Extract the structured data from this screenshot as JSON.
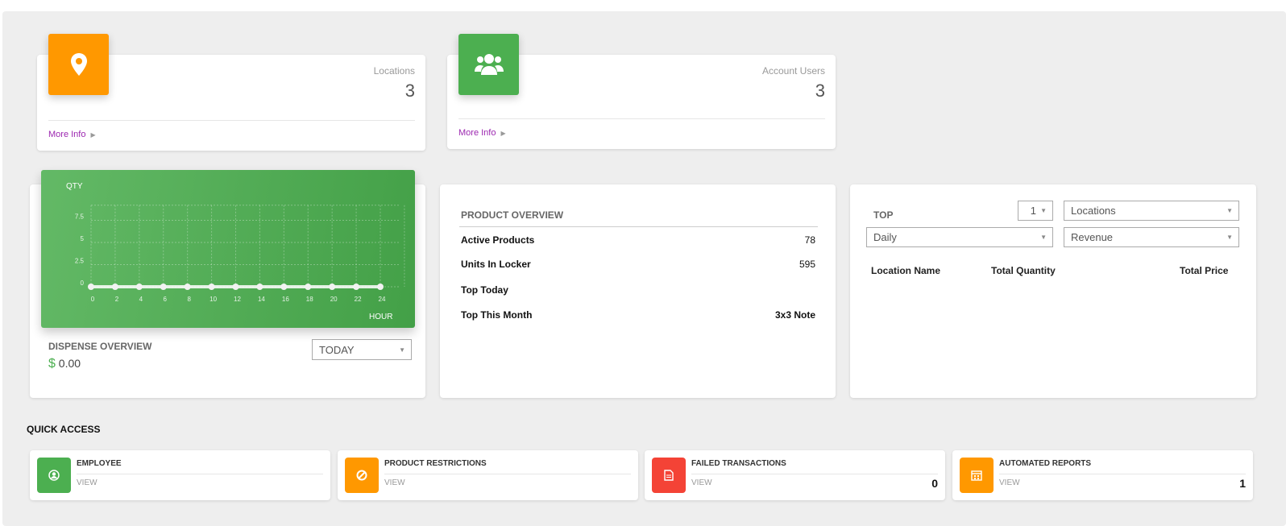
{
  "colors": {
    "orange": "#ff9800",
    "green": "#4caf50",
    "red": "#f44336",
    "link": "#9c27b0"
  },
  "stats": [
    {
      "label": "Locations",
      "value": "3",
      "more": "More Info",
      "icon": "map-pin-icon"
    },
    {
      "label": "Account Users",
      "value": "3",
      "more": "More Info",
      "icon": "users-icon"
    }
  ],
  "dispense": {
    "title": "DISPENSE OVERVIEW",
    "currency": "$",
    "amount": "0.00",
    "period": "TODAY"
  },
  "chart_data": {
    "type": "line",
    "xlabel": "HOUR",
    "ylabel": "QTY",
    "x": [
      0,
      2,
      4,
      6,
      8,
      10,
      12,
      14,
      16,
      18,
      20,
      22,
      24
    ],
    "values": [
      0,
      0,
      0,
      0,
      0,
      0,
      0,
      0,
      0,
      0,
      0,
      0,
      0
    ],
    "xticks": [
      "0",
      "2",
      "4",
      "6",
      "8",
      "10",
      "12",
      "14",
      "16",
      "18",
      "20",
      "22",
      "24"
    ],
    "yticks": [
      "0",
      "2.5",
      "5",
      "7.5"
    ],
    "xlim": [
      0,
      24
    ],
    "ylim": [
      0,
      10
    ],
    "grid": true
  },
  "product": {
    "title": "PRODUCT OVERVIEW",
    "rows": [
      {
        "label": "Active Products",
        "value": "78"
      },
      {
        "label": "Units In Locker",
        "value": "595"
      },
      {
        "label": "Top Today",
        "value": ""
      },
      {
        "label": "Top This Month",
        "value": "3x3 Note"
      }
    ]
  },
  "top": {
    "title": "TOP",
    "count": "1",
    "entity": "Locations",
    "period": "Daily",
    "metric": "Revenue",
    "columns": [
      "Location Name",
      "Total Quantity",
      "Total Price"
    ]
  },
  "quick": {
    "title": "QUICK ACCESS",
    "items": [
      {
        "label": "EMPLOYEE",
        "view": "VIEW",
        "count": "",
        "icon": "user-circle-icon",
        "color": "#4caf50"
      },
      {
        "label": "PRODUCT RESTRICTIONS",
        "view": "VIEW",
        "count": "",
        "icon": "block-icon",
        "color": "#ff9800"
      },
      {
        "label": "FAILED TRANSACTIONS",
        "view": "VIEW",
        "count": "0",
        "icon": "document-icon",
        "color": "#f44336"
      },
      {
        "label": "AUTOMATED REPORTS",
        "view": "VIEW",
        "count": "1",
        "icon": "calendar-icon",
        "color": "#ff9800"
      }
    ]
  }
}
